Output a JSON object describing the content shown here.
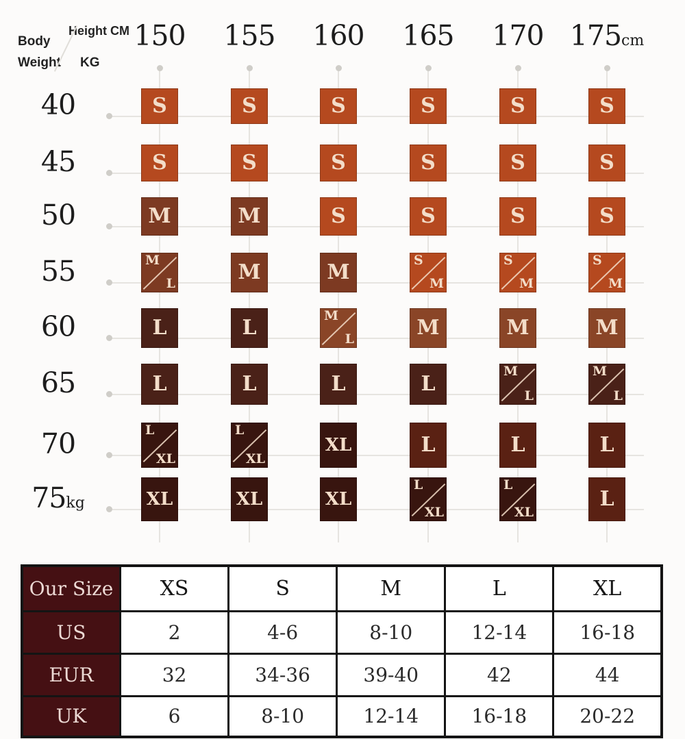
{
  "page": {
    "background": "#fcfbfa"
  },
  "matrix": {
    "corner": {
      "body": "Body",
      "weight": "Weight",
      "kg": "KG",
      "height_cm": "Height CM"
    },
    "columns": [
      {
        "t": "150"
      },
      {
        "t": "155"
      },
      {
        "t": "160"
      },
      {
        "t": "165"
      },
      {
        "t": "170"
      },
      {
        "t": "175",
        "suffix": "cm"
      }
    ],
    "rows": [
      {
        "t": "40"
      },
      {
        "t": "45"
      },
      {
        "t": "50"
      },
      {
        "t": "55"
      },
      {
        "t": "60"
      },
      {
        "t": "65"
      },
      {
        "t": "70"
      },
      {
        "t": "75",
        "suffix": "kg"
      }
    ],
    "cells": [
      [
        {
          "t": "S",
          "c": "s"
        },
        {
          "t": "S",
          "c": "s"
        },
        {
          "t": "S",
          "c": "s"
        },
        {
          "t": "S",
          "c": "s"
        },
        {
          "t": "S",
          "c": "s"
        },
        {
          "t": "S",
          "c": "s"
        }
      ],
      [
        {
          "t": "S",
          "c": "s"
        },
        {
          "t": "S",
          "c": "s"
        },
        {
          "t": "S",
          "c": "s"
        },
        {
          "t": "S",
          "c": "s"
        },
        {
          "t": "S",
          "c": "s"
        },
        {
          "t": "S",
          "c": "s"
        }
      ],
      [
        {
          "t": "M",
          "c": "m1"
        },
        {
          "t": "M",
          "c": "m1"
        },
        {
          "t": "S",
          "c": "s"
        },
        {
          "t": "S",
          "c": "s"
        },
        {
          "t": "S",
          "c": "s"
        },
        {
          "t": "S",
          "c": "s"
        }
      ],
      [
        {
          "t": "M/L",
          "c": "m1",
          "split": true
        },
        {
          "t": "M",
          "c": "m1"
        },
        {
          "t": "M",
          "c": "m1"
        },
        {
          "t": "S/M",
          "c": "s",
          "split": true
        },
        {
          "t": "S/M",
          "c": "s",
          "split": true
        },
        {
          "t": "S/M",
          "c": "s",
          "split": true
        }
      ],
      [
        {
          "t": "L",
          "c": "l"
        },
        {
          "t": "L",
          "c": "l"
        },
        {
          "t": "M/L",
          "c": "m2",
          "split": true
        },
        {
          "t": "M",
          "c": "m2"
        },
        {
          "t": "M",
          "c": "m2"
        },
        {
          "t": "M",
          "c": "m2"
        }
      ],
      [
        {
          "t": "L",
          "c": "l"
        },
        {
          "t": "L",
          "c": "l"
        },
        {
          "t": "L",
          "c": "l"
        },
        {
          "t": "L",
          "c": "l"
        },
        {
          "t": "M/L",
          "c": "l",
          "split": true
        },
        {
          "t": "M/L",
          "c": "l",
          "split": true
        }
      ],
      [
        {
          "t": "L/XL",
          "c": "xl",
          "split": true
        },
        {
          "t": "L/XL",
          "c": "xl",
          "split": true
        },
        {
          "t": "XL",
          "c": "xl"
        },
        {
          "t": "L",
          "c": "lr"
        },
        {
          "t": "L",
          "c": "lr"
        },
        {
          "t": "L",
          "c": "lr"
        }
      ],
      [
        {
          "t": "XL",
          "c": "xl"
        },
        {
          "t": "XL",
          "c": "xl"
        },
        {
          "t": "XL",
          "c": "xl"
        },
        {
          "t": "L/XL",
          "c": "xl",
          "split": true
        },
        {
          "t": "L/XL",
          "c": "xl",
          "split": true
        },
        {
          "t": "L",
          "c": "lr"
        }
      ]
    ],
    "palette": {
      "s": "#b5491f",
      "m1": "#7d3a22",
      "m2": "#8a4527",
      "l": "#4a2118",
      "lr": "#5a2113",
      "xl": "#38150f",
      "cell_text": "#f3ddc9"
    }
  },
  "conversion_table": {
    "header": [
      "Our Size",
      "XS",
      "S",
      "M",
      "L",
      "XL"
    ],
    "rows": [
      [
        "US",
        "2",
        "4-6",
        "8-10",
        "12-14",
        "16-18"
      ],
      [
        "EUR",
        "32",
        "34-36",
        "39-40",
        "42",
        "44"
      ],
      [
        "UK",
        "6",
        "8-10",
        "12-14",
        "16-18",
        "20-22"
      ]
    ],
    "label_bg": "#451013",
    "label_text": "#ecd9d4",
    "border": "#141414"
  },
  "chart_data": [
    {
      "type": "heatmap",
      "title": "Size by body weight and height",
      "xlabel": "Height CM",
      "ylabel": "Body Weight KG",
      "x": [
        150,
        155,
        160,
        165,
        170,
        175
      ],
      "y": [
        40,
        45,
        50,
        55,
        60,
        65,
        70,
        75
      ],
      "values": [
        [
          "S",
          "S",
          "S",
          "S",
          "S",
          "S"
        ],
        [
          "S",
          "S",
          "S",
          "S",
          "S",
          "S"
        ],
        [
          "M",
          "M",
          "S",
          "S",
          "S",
          "S"
        ],
        [
          "M/L",
          "M",
          "M",
          "S/M",
          "S/M",
          "S/M"
        ],
        [
          "L",
          "L",
          "M/L",
          "M",
          "M",
          "M"
        ],
        [
          "L",
          "L",
          "L",
          "L",
          "M/L",
          "M/L"
        ],
        [
          "L/XL",
          "L/XL",
          "XL",
          "L",
          "L",
          "L"
        ],
        [
          "XL",
          "XL",
          "XL",
          "L/XL",
          "L/XL",
          "L"
        ]
      ],
      "legend_position": "none",
      "grid": true
    },
    {
      "type": "table",
      "columns": [
        "Our Size",
        "XS",
        "S",
        "M",
        "L",
        "XL"
      ],
      "rows": [
        [
          "US",
          "2",
          "4-6",
          "8-10",
          "12-14",
          "16-18"
        ],
        [
          "EUR",
          "32",
          "34-36",
          "39-40",
          "42",
          "44"
        ],
        [
          "UK",
          "6",
          "8-10",
          "12-14",
          "16-18",
          "20-22"
        ]
      ]
    }
  ]
}
